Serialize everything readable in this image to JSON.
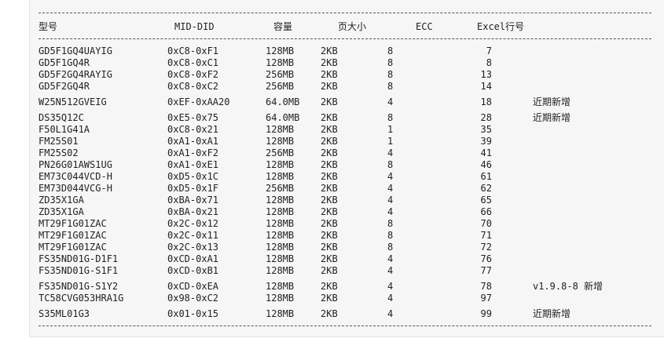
{
  "headers": [
    "型号",
    "MID-DID",
    "容量",
    "页大小",
    "ECC",
    "Excel行号"
  ],
  "rows": [
    {
      "model": "GD5F1GQ4UAYIG",
      "mid": "0xC8-0xF1",
      "cap": "128MB",
      "page": "2KB",
      "ecc": "8",
      "line": "7",
      "note": ""
    },
    {
      "model": "GD5F1GQ4R",
      "mid": "0xC8-0xC1",
      "cap": "128MB",
      "page": "2KB",
      "ecc": "8",
      "line": "8",
      "note": ""
    },
    {
      "model": "GD5F2GQ4RAYIG",
      "mid": "0xC8-0xF2",
      "cap": "256MB",
      "page": "2KB",
      "ecc": "8",
      "line": "13",
      "note": ""
    },
    {
      "model": "GD5F2GQ4R",
      "mid": "0xC8-0xC2",
      "cap": "256MB",
      "page": "2KB",
      "ecc": "8",
      "line": "14",
      "note": ""
    },
    {
      "model": "W25N512GVEIG",
      "mid": "0xEF-0xAA20",
      "cap": "64.0MB",
      "page": "2KB",
      "ecc": "4",
      "line": "18",
      "note": "近期新增"
    },
    {
      "model": "DS35Q12C",
      "mid": "0xE5-0x75",
      "cap": "64.0MB",
      "page": "2KB",
      "ecc": "8",
      "line": "28",
      "note": "近期新增"
    },
    {
      "model": "F50L1G41A",
      "mid": "0xC8-0x21",
      "cap": "128MB",
      "page": "2KB",
      "ecc": "1",
      "line": "35",
      "note": ""
    },
    {
      "model": "FM25S01",
      "mid": "0xA1-0xA1",
      "cap": "128MB",
      "page": "2KB",
      "ecc": "1",
      "line": "39",
      "note": ""
    },
    {
      "model": "FM25S02",
      "mid": "0xA1-0xF2",
      "cap": "256MB",
      "page": "2KB",
      "ecc": "4",
      "line": "41",
      "note": ""
    },
    {
      "model": "PN26G01AWS1UG",
      "mid": "0xA1-0xE1",
      "cap": "128MB",
      "page": "2KB",
      "ecc": "8",
      "line": "46",
      "note": ""
    },
    {
      "model": "EM73C044VCD-H",
      "mid": "0xD5-0x1C",
      "cap": "128MB",
      "page": "2KB",
      "ecc": "4",
      "line": "61",
      "note": ""
    },
    {
      "model": "EM73D044VCG-H",
      "mid": "0xD5-0x1F",
      "cap": "256MB",
      "page": "2KB",
      "ecc": "4",
      "line": "62",
      "note": ""
    },
    {
      "model": "ZD35X1GA",
      "mid": "0xBA-0x71",
      "cap": "128MB",
      "page": "2KB",
      "ecc": "4",
      "line": "65",
      "note": ""
    },
    {
      "model": "ZD35X1GA",
      "mid": "0xBA-0x21",
      "cap": "128MB",
      "page": "2KB",
      "ecc": "4",
      "line": "66",
      "note": ""
    },
    {
      "model": "MT29F1G01ZAC",
      "mid": "0x2C-0x12",
      "cap": "128MB",
      "page": "2KB",
      "ecc": "8",
      "line": "70",
      "note": ""
    },
    {
      "model": "MT29F1G01ZAC",
      "mid": "0x2C-0x11",
      "cap": "128MB",
      "page": "2KB",
      "ecc": "8",
      "line": "71",
      "note": ""
    },
    {
      "model": "MT29F1G01ZAC",
      "mid": "0x2C-0x13",
      "cap": "128MB",
      "page": "2KB",
      "ecc": "8",
      "line": "72",
      "note": ""
    },
    {
      "model": "FS35ND01G-D1F1",
      "mid": "0xCD-0xA1",
      "cap": "128MB",
      "page": "2KB",
      "ecc": "4",
      "line": "76",
      "note": ""
    },
    {
      "model": "FS35ND01G-S1F1",
      "mid": "0xCD-0xB1",
      "cap": "128MB",
      "page": "2KB",
      "ecc": "4",
      "line": "77",
      "note": ""
    },
    {
      "model": "FS35ND01G-S1Y2",
      "mid": "0xCD-0xEA",
      "cap": "128MB",
      "page": "2KB",
      "ecc": "4",
      "line": "78",
      "note": "v1.9.8-8 新增"
    },
    {
      "model": "TC58CVG053HRA1G",
      "mid": "0x98-0xC2",
      "cap": "128MB",
      "page": "2KB",
      "ecc": "4",
      "line": "97",
      "note": ""
    },
    {
      "model": "S35ML01G3",
      "mid": "0x01-0x15",
      "cap": "128MB",
      "page": "2KB",
      "ecc": "4",
      "line": "99",
      "note": "近期新增"
    }
  ]
}
